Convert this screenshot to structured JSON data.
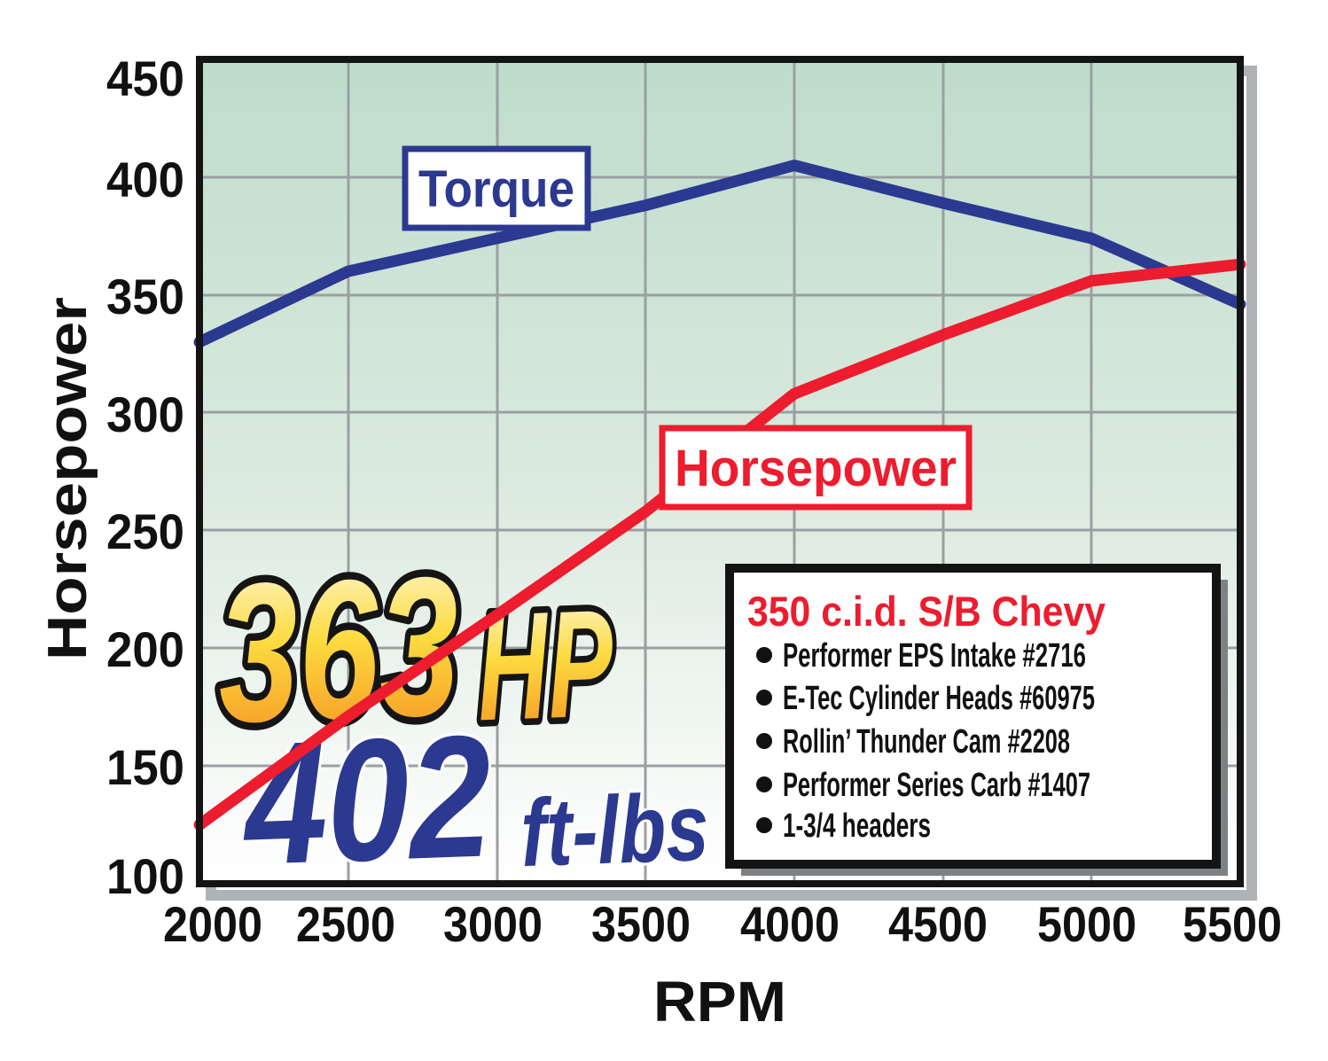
{
  "chart_data": {
    "type": "line",
    "title": "",
    "xlabel": "RPM",
    "ylabel": "Horsepower",
    "x": [
      2000,
      2500,
      3000,
      3500,
      4000,
      4500,
      5000,
      5500
    ],
    "x_ticks": [
      "2000",
      "2500",
      "3000",
      "3500",
      "4000",
      "4500",
      "5000",
      "5500"
    ],
    "y_ticks": [
      "450",
      "400",
      "350",
      "300",
      "250",
      "200",
      "150",
      "100"
    ],
    "xlim": [
      2000,
      5500
    ],
    "ylim": [
      100,
      450
    ],
    "grid": true,
    "legend_position": "inside bottom-right",
    "series": [
      {
        "name": "Torque",
        "units": "ft-lbs",
        "color": "#2b3990",
        "values": [
          330,
          360,
          374,
          388,
          405,
          389,
          374,
          346
        ]
      },
      {
        "name": "Horsepower",
        "units": "HP",
        "color": "#ed1c2e",
        "values": [
          125,
          171,
          214,
          258,
          308,
          333,
          356,
          363
        ]
      }
    ]
  },
  "curve_labels": {
    "torque": "Torque",
    "horsepower": "Horsepower"
  },
  "peak_callout": {
    "hp_value": "363",
    "hp_unit": "HP",
    "torque_value": "402",
    "torque_unit": "ft-lbs"
  },
  "legend": {
    "title": "350 c.i.d. S/B Chevy",
    "items": [
      "Performer EPS Intake #2716",
      "E-Tec Cylinder Heads #60975",
      "Rollin’ Thunder Cam #2208",
      "Performer Series Carb #1407",
      "1-3/4 headers"
    ]
  },
  "colors": {
    "torque_line": "#2b3990",
    "horsepower_line": "#ed1c2e",
    "plot_bg_top": "#bedccb",
    "plot_bg_bottom": "#ffffff",
    "gridline": "#9aa0a2",
    "plot_border": "#141414",
    "plot_shadow": "#b0b3b5",
    "legend_shadow": "#7d8184",
    "gold_top": "#fffbe6",
    "gold_mid": "#fcdb40",
    "gold_bottom": "#f68b1f"
  }
}
